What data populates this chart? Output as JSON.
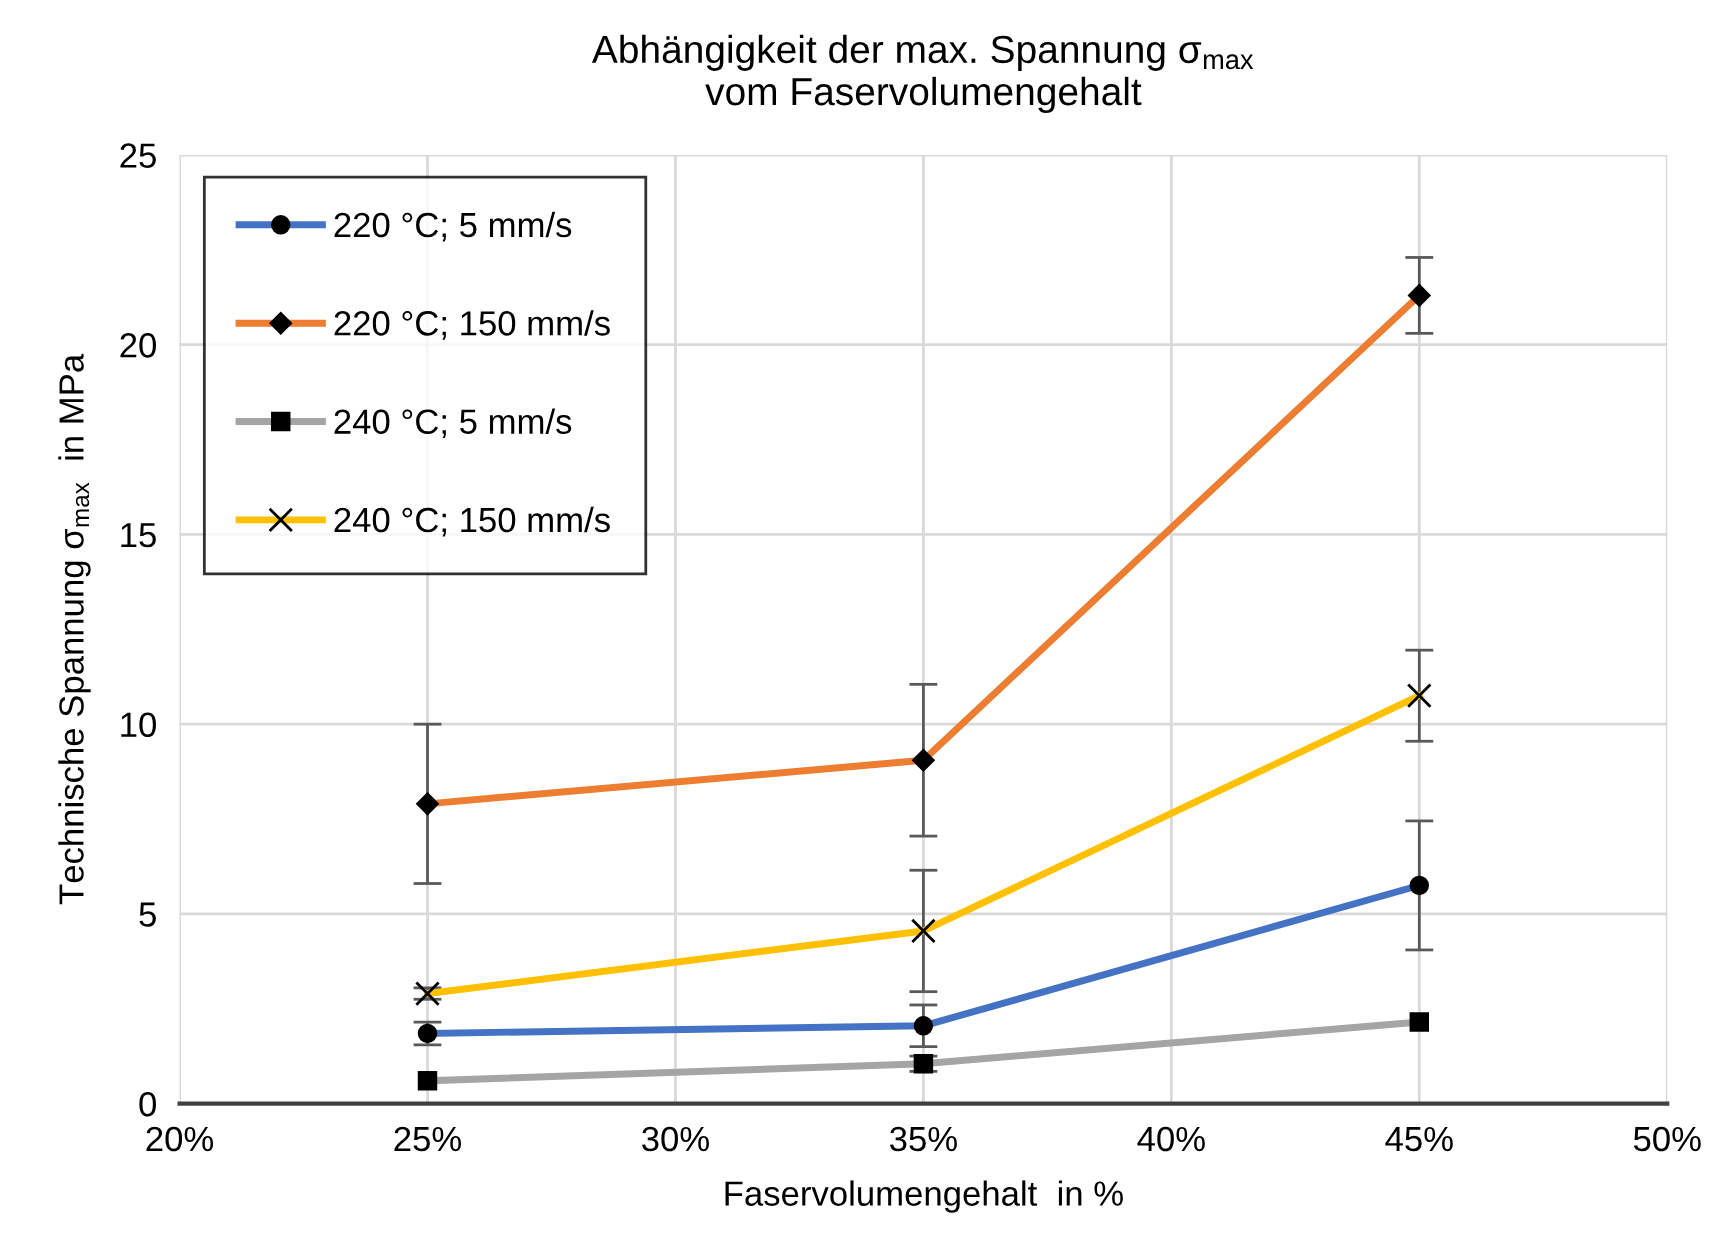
{
  "chart_data": {
    "type": "line",
    "title": "Abhängigkeit der max. Spannung σ$_{max}$\nvom Faservolumengehalt",
    "xlabel": "Faservolumengehalt  in %",
    "ylabel": "Technische Spannung σ$_{max}$  in MPa",
    "x": [
      25,
      35,
      45
    ],
    "series": [
      {
        "name": "220 °C; 5 mm/s",
        "color": "#4472c4",
        "marker": "circle",
        "values": [
          1.85,
          2.05,
          5.75
        ],
        "errors": [
          0.3,
          0.55,
          1.7
        ]
      },
      {
        "name": "220 °C; 150 mm/s",
        "color": "#ed7d31",
        "marker": "diamond",
        "values": [
          7.9,
          9.05,
          21.3
        ],
        "errors": [
          2.1,
          2.0,
          1.0
        ]
      },
      {
        "name": "240 °C; 5 mm/s",
        "color": "#a5a5a5",
        "marker": "square",
        "values": [
          0.6,
          1.05,
          2.15
        ],
        "errors": [
          null,
          0.2,
          null
        ]
      },
      {
        "name": "240 °C; 150 mm/s",
        "color": "#ffc000",
        "marker": "cross",
        "values": [
          2.9,
          4.55,
          10.75
        ],
        "errors": [
          0.15,
          1.6,
          1.2
        ]
      }
    ],
    "xlim": [
      20,
      50
    ],
    "xticks": [
      {
        "value": 20,
        "label": "20%"
      },
      {
        "value": 25,
        "label": "25%"
      },
      {
        "value": 30,
        "label": "30%"
      },
      {
        "value": 35,
        "label": "35%"
      },
      {
        "value": 40,
        "label": "40%"
      },
      {
        "value": 45,
        "label": "45%"
      },
      {
        "value": 50,
        "label": "50%"
      }
    ],
    "ylim": [
      0,
      25
    ],
    "yticks": [
      0,
      5,
      10,
      15,
      20,
      25
    ],
    "grid": true,
    "legend": "top left",
    "line_style": "solid"
  }
}
